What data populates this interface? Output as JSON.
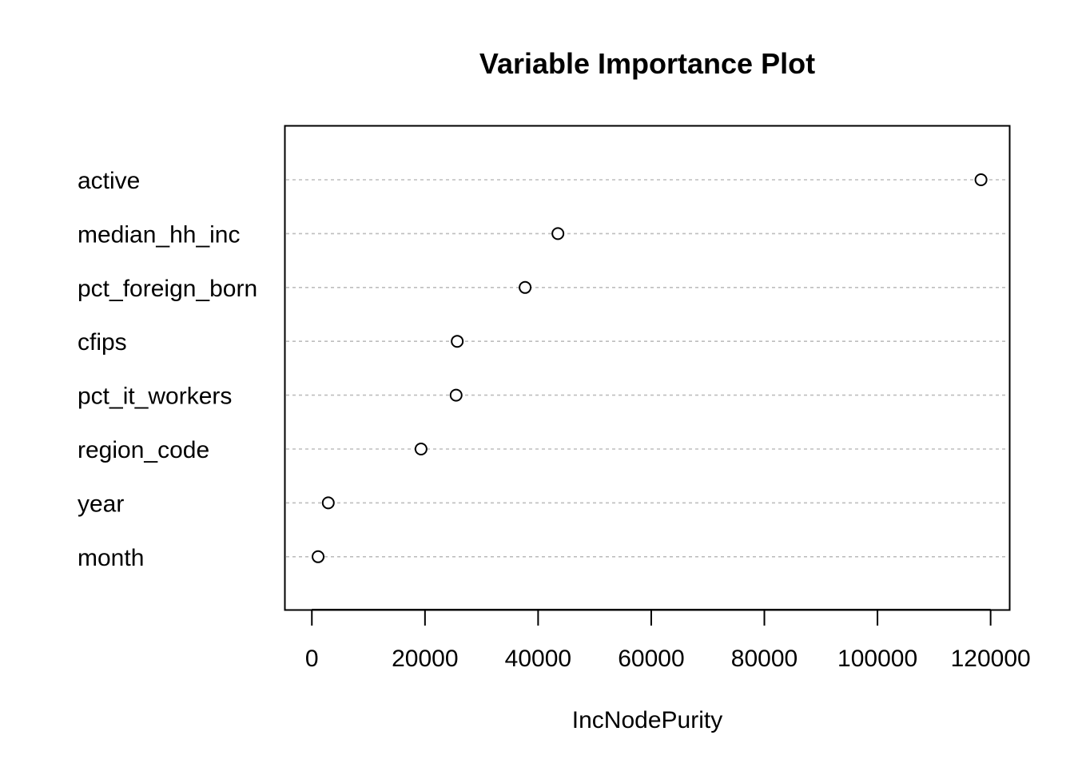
{
  "chart_data": {
    "type": "scatter",
    "title": "Variable Importance Plot",
    "xlabel": "IncNodePurity",
    "ylabel": "",
    "xlim": [
      -4700,
      123300
    ],
    "xticks": [
      0,
      20000,
      40000,
      60000,
      80000,
      100000,
      120000
    ],
    "xtick_labels": [
      "0",
      "20000",
      "40000",
      "60000",
      "80000",
      "100000",
      "120000"
    ],
    "grid": "dotted horizontal guide line per variable",
    "variables": [
      {
        "name": "active",
        "value": 118300
      },
      {
        "name": "median_hh_inc",
        "value": 43500
      },
      {
        "name": "pct_foreign_born",
        "value": 37700
      },
      {
        "name": "cfips",
        "value": 25700
      },
      {
        "name": "pct_it_workers",
        "value": 25500
      },
      {
        "name": "region_code",
        "value": 19300
      },
      {
        "name": "year",
        "value": 2900
      },
      {
        "name": "month",
        "value": 1100
      }
    ],
    "colors": {
      "marker_stroke": "#000000",
      "marker_fill": "#ffffff",
      "guide_line": "#bebebe",
      "frame": "#000000"
    }
  }
}
